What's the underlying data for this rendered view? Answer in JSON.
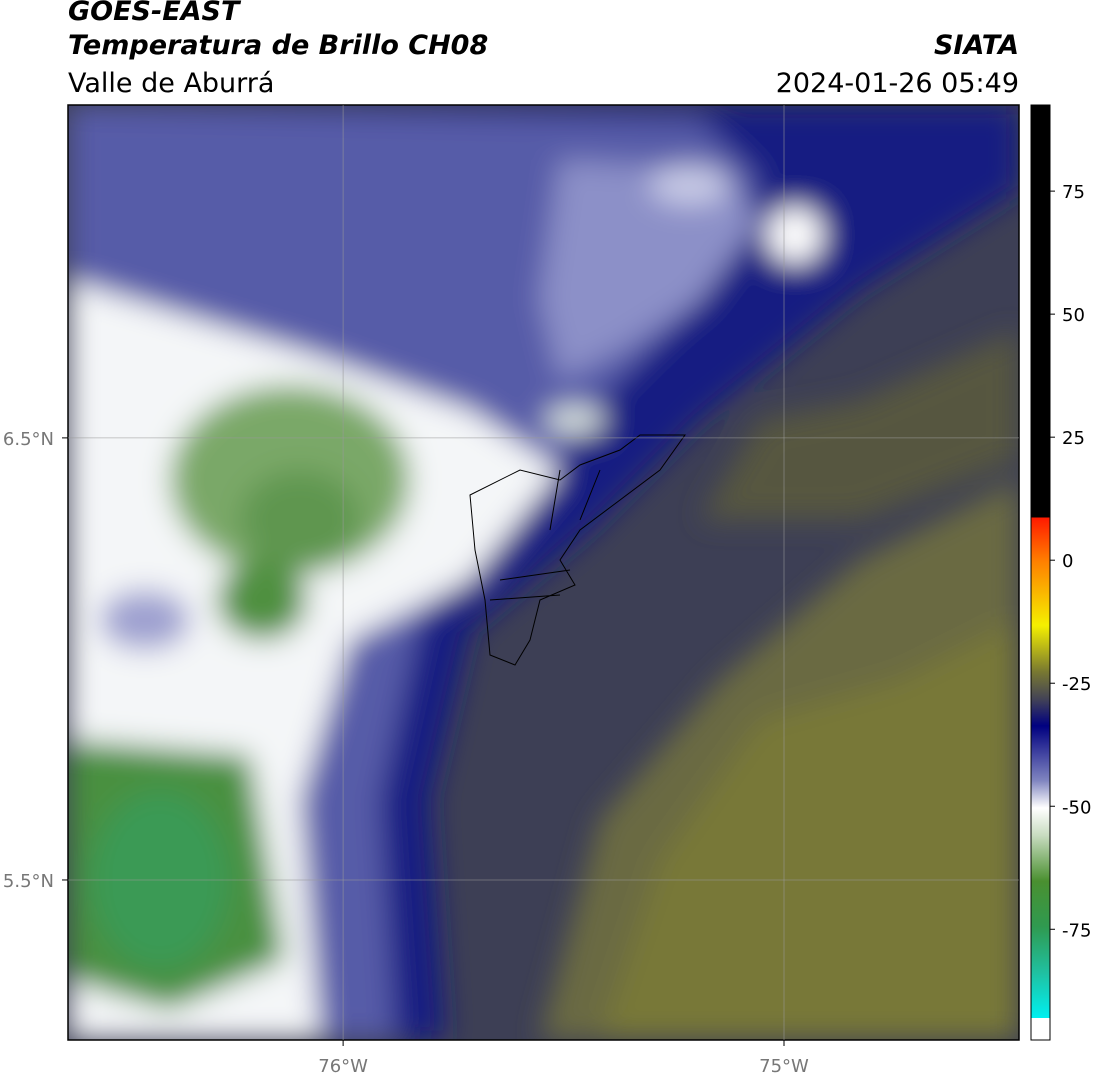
{
  "header": {
    "title": "GOES-EAST",
    "subtitle": "Temperatura de Brillo CH08",
    "region": "Valle de Aburrá",
    "source": "SIATA",
    "datetime": "2024-01-26 05:49"
  },
  "map": {
    "xlim": [
      -76.624,
      -74.467
    ],
    "ylim": [
      5.138,
      7.253
    ],
    "xticks": [
      {
        "value": -76,
        "label": "76°W"
      },
      {
        "value": -75,
        "label": "75°W"
      }
    ],
    "yticks": [
      {
        "value": 6.5,
        "label": "6.5°N"
      },
      {
        "value": 5.5,
        "label": "5.5°N"
      }
    ],
    "grid": true
  },
  "colorbar": {
    "lim": [
      -97.5,
      92.5
    ],
    "ticks": [
      75,
      50,
      25,
      0,
      -25,
      -50,
      -75
    ]
  }
}
